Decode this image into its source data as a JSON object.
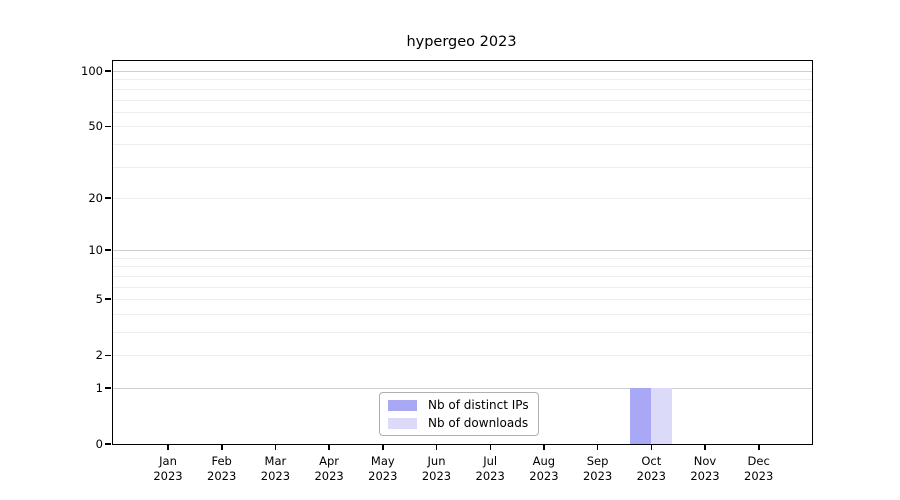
{
  "chart_data": {
    "type": "bar",
    "title": "hypergeo 2023",
    "x_categories": [
      {
        "month": "Jan",
        "year": "2023"
      },
      {
        "month": "Feb",
        "year": "2023"
      },
      {
        "month": "Mar",
        "year": "2023"
      },
      {
        "month": "Apr",
        "year": "2023"
      },
      {
        "month": "May",
        "year": "2023"
      },
      {
        "month": "Jun",
        "year": "2023"
      },
      {
        "month": "Jul",
        "year": "2023"
      },
      {
        "month": "Aug",
        "year": "2023"
      },
      {
        "month": "Sep",
        "year": "2023"
      },
      {
        "month": "Oct",
        "year": "2023"
      },
      {
        "month": "Nov",
        "year": "2023"
      },
      {
        "month": "Dec",
        "year": "2023"
      }
    ],
    "series": [
      {
        "name": "Nb of distinct IPs",
        "color": "#a8a8f4",
        "values": [
          0,
          0,
          0,
          0,
          0,
          0,
          0,
          0,
          0,
          1,
          0,
          0
        ]
      },
      {
        "name": "Nb of downloads",
        "color": "#dbdbf9",
        "values": [
          0,
          0,
          0,
          0,
          0,
          0,
          0,
          0,
          0,
          1,
          0,
          0
        ]
      }
    ],
    "y_axis": {
      "scale": "log1p",
      "tick_values": [
        0,
        1,
        2,
        5,
        10,
        20,
        50,
        100
      ],
      "range": [
        0,
        113
      ]
    },
    "grid": {
      "major_values": [
        1,
        10,
        100
      ],
      "minor_values": [
        2,
        3,
        4,
        5,
        6,
        7,
        8,
        9,
        20,
        30,
        40,
        50,
        60,
        70,
        80,
        90
      ],
      "major_color": "#cfcfcf",
      "minor_color": "#eeeeee"
    },
    "legend": {
      "position": "bottom-center"
    }
  }
}
